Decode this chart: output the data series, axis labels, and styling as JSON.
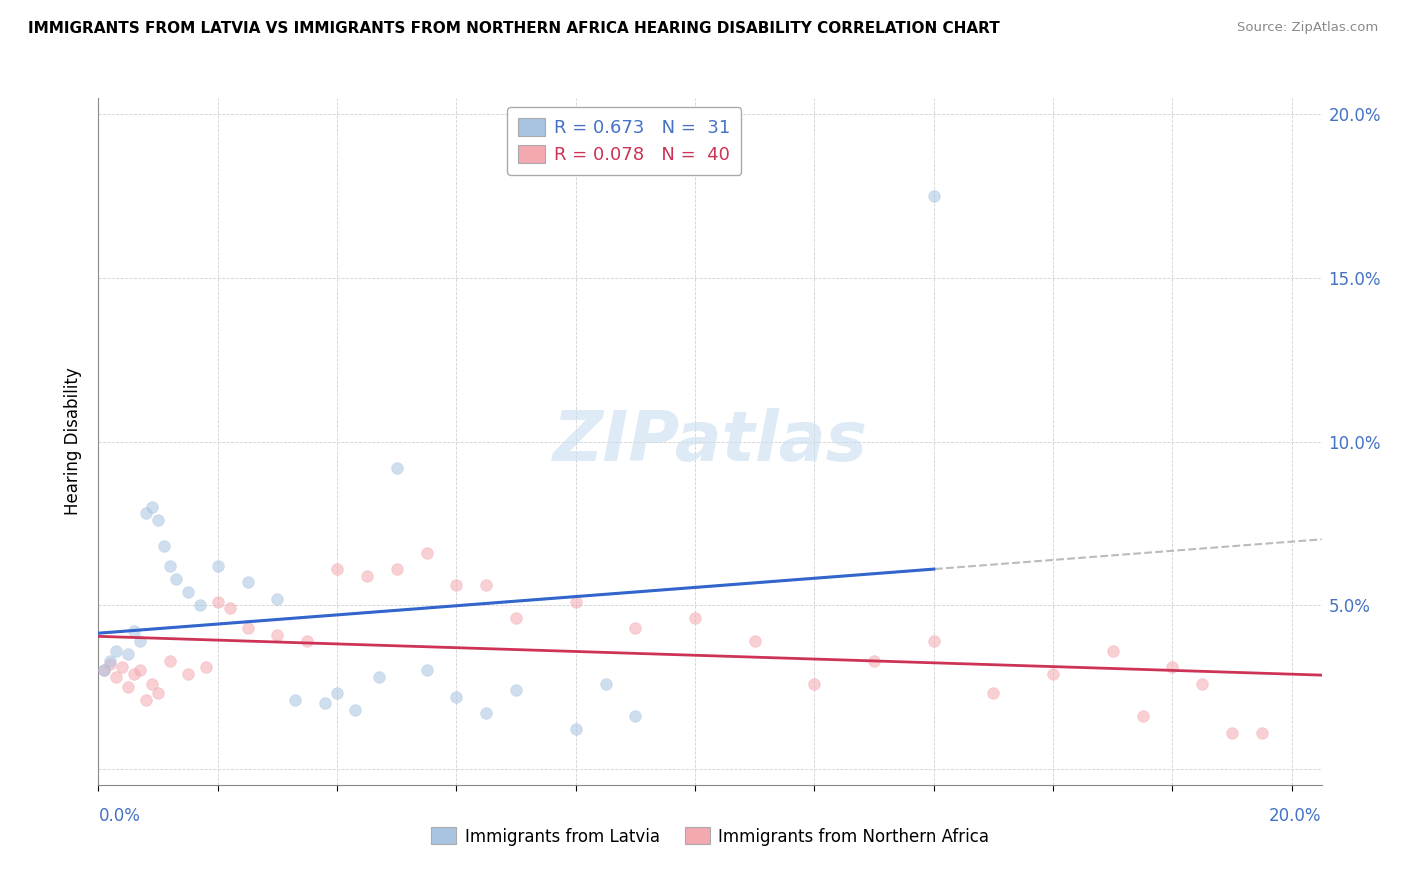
{
  "title": "IMMIGRANTS FROM LATVIA VS IMMIGRANTS FROM NORTHERN AFRICA HEARING DISABILITY CORRELATION CHART",
  "source": "Source: ZipAtlas.com",
  "ylabel": "Hearing Disability",
  "xlim": [
    0.0,
    0.205
  ],
  "ylim": [
    -0.005,
    0.205
  ],
  "yticks": [
    0.0,
    0.05,
    0.1,
    0.15,
    0.2
  ],
  "ytick_labels": [
    "",
    "5.0%",
    "10.0%",
    "15.0%",
    "20.0%"
  ],
  "blue_scatter_color": "#a8c4e0",
  "pink_scatter_color": "#f4a8b0",
  "blue_line_color": "#3366cc",
  "pink_line_color": "#cc3355",
  "gray_dash_color": "#aaaaaa",
  "legend_text_color_blue": "#4472c4",
  "legend_text_color_pink": "#cc3355",
  "watermark_color": "#c8dff0",
  "latvia_x": [
    0.001,
    0.002,
    0.003,
    0.005,
    0.006,
    0.007,
    0.008,
    0.009,
    0.01,
    0.011,
    0.012,
    0.013,
    0.015,
    0.017,
    0.02,
    0.025,
    0.03,
    0.033,
    0.038,
    0.04,
    0.043,
    0.047,
    0.05,
    0.055,
    0.06,
    0.065,
    0.07,
    0.08,
    0.085,
    0.09,
    0.14
  ],
  "latvia_y": [
    0.03,
    0.033,
    0.036,
    0.035,
    0.042,
    0.039,
    0.078,
    0.08,
    0.076,
    0.068,
    0.062,
    0.058,
    0.054,
    0.05,
    0.062,
    0.057,
    0.052,
    0.021,
    0.02,
    0.023,
    0.018,
    0.028,
    0.092,
    0.03,
    0.022,
    0.017,
    0.024,
    0.012,
    0.026,
    0.016,
    0.175
  ],
  "nafrica_x": [
    0.001,
    0.002,
    0.003,
    0.004,
    0.005,
    0.006,
    0.007,
    0.008,
    0.009,
    0.01,
    0.012,
    0.015,
    0.018,
    0.02,
    0.022,
    0.025,
    0.03,
    0.035,
    0.04,
    0.045,
    0.05,
    0.055,
    0.06,
    0.065,
    0.07,
    0.08,
    0.09,
    0.1,
    0.11,
    0.12,
    0.13,
    0.14,
    0.15,
    0.16,
    0.17,
    0.175,
    0.18,
    0.185,
    0.19,
    0.195
  ],
  "nafrica_y": [
    0.03,
    0.032,
    0.028,
    0.031,
    0.025,
    0.029,
    0.03,
    0.021,
    0.026,
    0.023,
    0.033,
    0.029,
    0.031,
    0.051,
    0.049,
    0.043,
    0.041,
    0.039,
    0.061,
    0.059,
    0.061,
    0.066,
    0.056,
    0.056,
    0.046,
    0.051,
    0.043,
    0.046,
    0.039,
    0.026,
    0.033,
    0.039,
    0.023,
    0.029,
    0.036,
    0.016,
    0.031,
    0.026,
    0.011,
    0.011
  ],
  "marker_size": 70,
  "marker_alpha": 0.55
}
